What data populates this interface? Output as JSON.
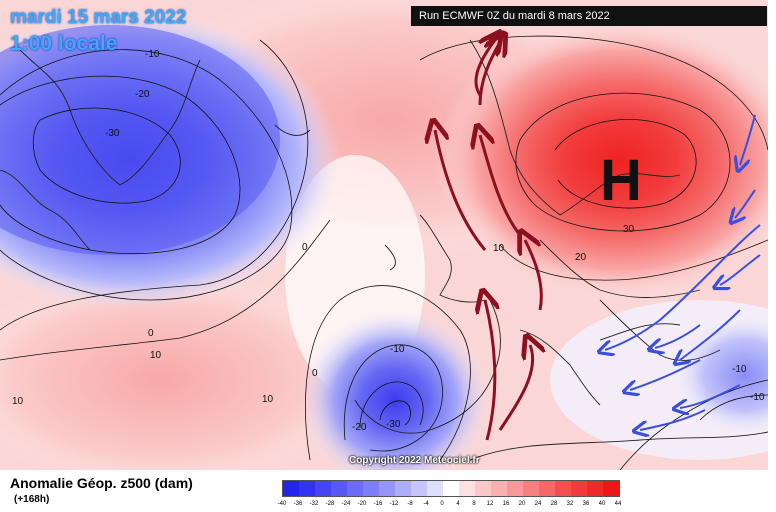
{
  "header": {
    "date": "mardi 15 mars 2022",
    "local_time": "1:00 locale",
    "run_info": "Run ECMWF 0Z du mardi 8 mars 2022"
  },
  "map": {
    "pressure_center": "H",
    "contour_labels": [
      "-10",
      "-20",
      "-30",
      "-10",
      "-20",
      "-30",
      "0",
      "10",
      "10",
      "0",
      "10",
      "10",
      "20",
      "30",
      "-10",
      "-10",
      "0"
    ],
    "copyright": "Copyright 2022 Meteociel.fr"
  },
  "footer": {
    "title": "Anomalie Géop. z500 (dam)",
    "subtitle": "(+168h)"
  },
  "legend": {
    "labels": [
      "-40",
      "-36",
      "-32",
      "-28",
      "-24",
      "-20",
      "-16",
      "-12",
      "-8",
      "-4",
      "0",
      "4",
      "8",
      "12",
      "16",
      "20",
      "24",
      "28",
      "32",
      "36",
      "40",
      "44"
    ],
    "colors": [
      "#2323ee",
      "#3232f2",
      "#4545f4",
      "#5858f5",
      "#6b6bf6",
      "#7e7ef7",
      "#9595f8",
      "#adadfa",
      "#c5c5fb",
      "#dedefd",
      "#ffffff",
      "#fde0e0",
      "#fbc8c8",
      "#f9b0b0",
      "#f89898",
      "#f68080",
      "#f56868",
      "#f45050",
      "#f23c3c",
      "#f02828",
      "#ec1818"
    ]
  },
  "colors": {
    "blue_anomaly": "#4f52f0",
    "red_anomaly": "#f03a3a",
    "warm_arrow": "#8b1020",
    "cold_arrow": "#3a4fe0"
  }
}
